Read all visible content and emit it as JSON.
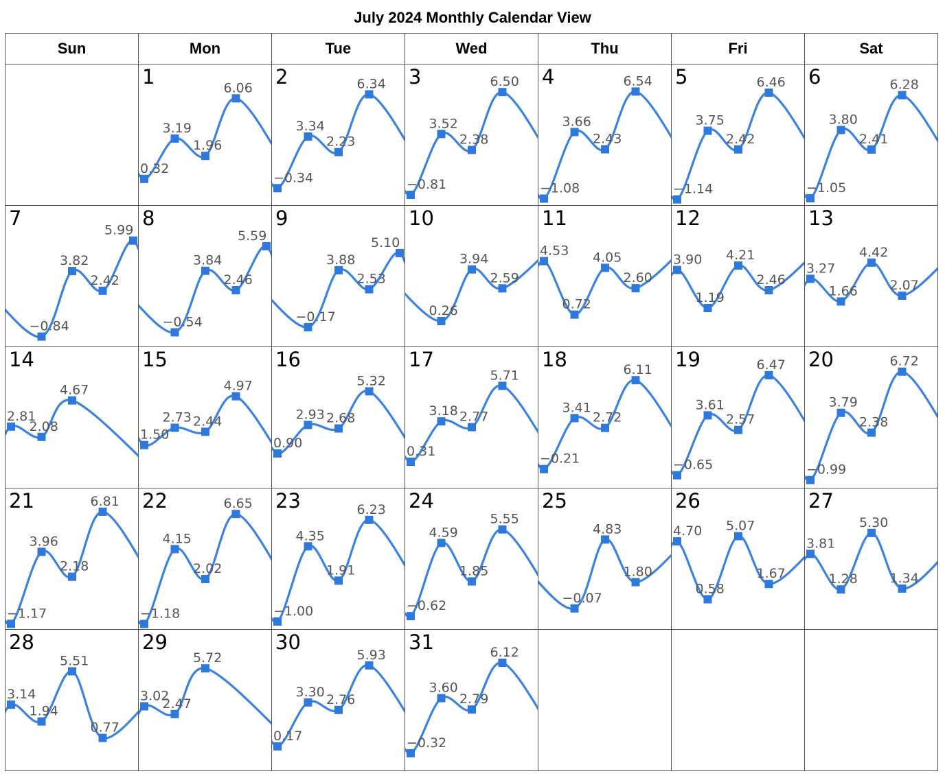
{
  "title": "July 2024 Monthly Calendar View",
  "weekdays": [
    "Sun",
    "Mon",
    "Tue",
    "Wed",
    "Thu",
    "Fri",
    "Sat"
  ],
  "colors": {
    "line": "#3b82e0",
    "marker": "#2f78dc",
    "label": "#555555",
    "grid": "#555555"
  },
  "chart_data": {
    "type": "line",
    "month": "July 2024",
    "first_weekday": "Mon",
    "points_per_day": 5,
    "days": [
      {
        "day": 1,
        "values": [
          0.32,
          3.19,
          1.96,
          6.06,
          null
        ]
      },
      {
        "day": 2,
        "values": [
          -0.34,
          3.34,
          2.23,
          6.34,
          null
        ]
      },
      {
        "day": 3,
        "values": [
          -0.81,
          3.52,
          2.38,
          6.5,
          null
        ]
      },
      {
        "day": 4,
        "values": [
          -1.08,
          3.66,
          2.43,
          6.54,
          null
        ]
      },
      {
        "day": 5,
        "values": [
          -1.14,
          3.75,
          2.42,
          6.46,
          null
        ]
      },
      {
        "day": 6,
        "values": [
          -1.05,
          3.8,
          2.41,
          6.28,
          null
        ]
      },
      {
        "day": 7,
        "values": [
          null,
          -0.84,
          3.82,
          2.42,
          5.99
        ]
      },
      {
        "day": 8,
        "values": [
          null,
          -0.54,
          3.84,
          2.46,
          5.59
        ]
      },
      {
        "day": 9,
        "values": [
          null,
          -0.17,
          3.88,
          2.53,
          5.1
        ]
      },
      {
        "day": 10,
        "values": [
          null,
          0.26,
          3.94,
          2.59,
          null
        ]
      },
      {
        "day": 11,
        "values": [
          4.53,
          0.72,
          4.05,
          2.6,
          null
        ]
      },
      {
        "day": 12,
        "values": [
          3.9,
          1.19,
          4.21,
          2.46,
          null
        ]
      },
      {
        "day": 13,
        "values": [
          3.27,
          1.66,
          4.42,
          2.07,
          null
        ]
      },
      {
        "day": 14,
        "values": [
          2.81,
          2.08,
          4.67,
          null,
          null
        ]
      },
      {
        "day": 15,
        "values": [
          1.5,
          2.73,
          2.44,
          4.97,
          null
        ]
      },
      {
        "day": 16,
        "values": [
          0.9,
          2.93,
          2.68,
          5.32,
          null
        ]
      },
      {
        "day": 17,
        "values": [
          0.31,
          3.18,
          2.77,
          5.71,
          null
        ]
      },
      {
        "day": 18,
        "values": [
          -0.21,
          3.41,
          2.72,
          6.11,
          null
        ]
      },
      {
        "day": 19,
        "values": [
          -0.65,
          3.61,
          2.57,
          6.47,
          null
        ]
      },
      {
        "day": 20,
        "values": [
          -0.99,
          3.79,
          2.38,
          6.72,
          null
        ]
      },
      {
        "day": 21,
        "values": [
          -1.17,
          3.96,
          2.18,
          6.81,
          null
        ]
      },
      {
        "day": 22,
        "values": [
          -1.18,
          4.15,
          2.02,
          6.65,
          null
        ]
      },
      {
        "day": 23,
        "values": [
          -1.0,
          4.35,
          1.91,
          6.23,
          null
        ]
      },
      {
        "day": 24,
        "values": [
          -0.62,
          4.59,
          1.85,
          5.55,
          null
        ]
      },
      {
        "day": 25,
        "values": [
          null,
          -0.07,
          4.83,
          1.8,
          null
        ]
      },
      {
        "day": 26,
        "values": [
          4.7,
          0.58,
          5.07,
          1.67,
          null
        ]
      },
      {
        "day": 27,
        "values": [
          3.81,
          1.28,
          5.3,
          1.34,
          null
        ]
      },
      {
        "day": 28,
        "values": [
          3.14,
          1.94,
          5.51,
          0.77,
          null
        ]
      },
      {
        "day": 29,
        "values": [
          3.02,
          2.47,
          5.72,
          null,
          null
        ]
      },
      {
        "day": 30,
        "values": [
          0.17,
          3.3,
          2.76,
          5.93,
          null
        ]
      },
      {
        "day": 31,
        "values": [
          -0.32,
          3.6,
          2.79,
          6.12,
          null
        ]
      }
    ]
  }
}
